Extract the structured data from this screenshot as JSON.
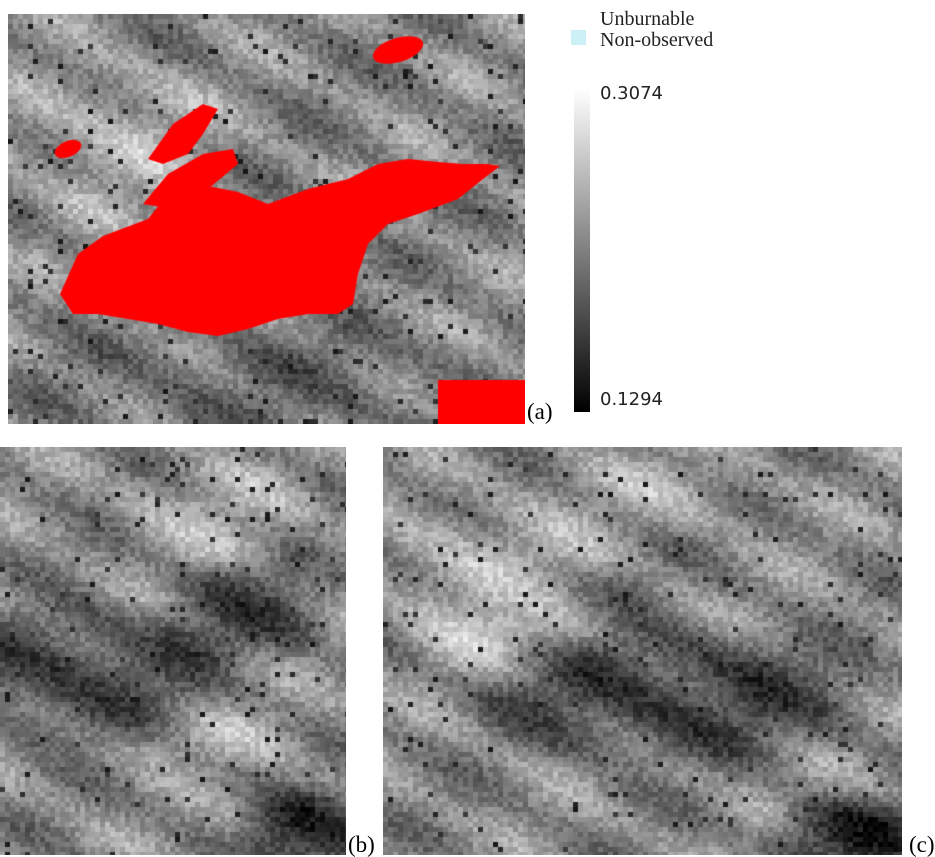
{
  "panels": [
    {
      "id": "a",
      "label": "(a)",
      "burned_overlay_color": "#ff0000"
    },
    {
      "id": "b",
      "label": "(b)"
    },
    {
      "id": "c",
      "label": "(c)"
    }
  ],
  "legend": {
    "line1": "Unburnable",
    "line2": "Non-observed",
    "swatch_color": "#cdeff6"
  },
  "colorbar": {
    "max_label": "0.3074",
    "min_label": "0.1294",
    "max_value": 0.3074,
    "min_value": 0.1294,
    "ramp": [
      "#000000",
      "#ffffff"
    ]
  }
}
